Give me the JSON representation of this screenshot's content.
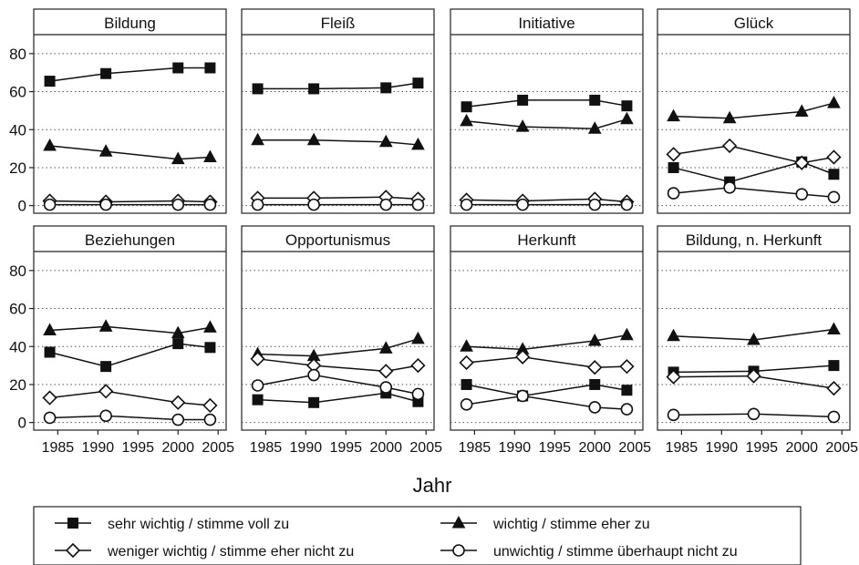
{
  "x_axis_label": "Jahr",
  "chart_data": {
    "type": "line",
    "layout": "small-multiples 2x4",
    "xlabel": "Jahr",
    "ylabel": "",
    "xlim": [
      1982,
      2006
    ],
    "ylim": [
      -4,
      90
    ],
    "x_ticks": [
      1985,
      1990,
      1995,
      2000,
      2005
    ],
    "y_ticks": [
      0,
      20,
      40,
      60,
      80
    ],
    "grid": "horizontal dotted",
    "legend_placement": "bottom",
    "series_styles": [
      {
        "name": "sehr wichtig / stimme voll zu",
        "marker": "filled-square"
      },
      {
        "name": "wichtig / stimme eher zu",
        "marker": "filled-triangle"
      },
      {
        "name": "weniger wichtig / stimme eher nicht zu",
        "marker": "hollow-diamond"
      },
      {
        "name": "unwichtig / stimme überhaupt nicht zu",
        "marker": "hollow-circle"
      }
    ],
    "panels": [
      {
        "title": "Bildung",
        "series": [
          {
            "name": "sehr wichtig / stimme voll zu",
            "x": [
              1984,
              1991,
              2000,
              2004
            ],
            "values": [
              65.5,
              69.5,
              72.5,
              72.5
            ]
          },
          {
            "name": "wichtig / stimme eher zu",
            "x": [
              1984,
              1991,
              2000,
              2004
            ],
            "values": [
              31.5,
              28.5,
              24.5,
              25.5
            ]
          },
          {
            "name": "weniger wichtig / stimme eher nicht zu",
            "x": [
              1984,
              1991,
              2000,
              2004
            ],
            "values": [
              2.5,
              2,
              2.5,
              2
            ]
          },
          {
            "name": "unwichtig / stimme überhaupt nicht zu",
            "x": [
              1984,
              1991,
              2000,
              2004
            ],
            "values": [
              0.5,
              0.5,
              0.5,
              0.5
            ]
          }
        ]
      },
      {
        "title": "Fleiß",
        "series": [
          {
            "name": "sehr wichtig / stimme voll zu",
            "x": [
              1984,
              1991,
              2000,
              2004
            ],
            "values": [
              61.5,
              61.5,
              62,
              64.5
            ]
          },
          {
            "name": "wichtig / stimme eher zu",
            "x": [
              1984,
              1991,
              2000,
              2004
            ],
            "values": [
              34.5,
              34.5,
              33.5,
              32
            ]
          },
          {
            "name": "weniger wichtig / stimme eher nicht zu",
            "x": [
              1984,
              1991,
              2000,
              2004
            ],
            "values": [
              4,
              4,
              4.5,
              3.5
            ]
          },
          {
            "name": "unwichtig / stimme überhaupt nicht zu",
            "x": [
              1984,
              1991,
              2000,
              2004
            ],
            "values": [
              0.5,
              0.5,
              0.5,
              0.5
            ]
          }
        ]
      },
      {
        "title": "Initiative",
        "series": [
          {
            "name": "sehr wichtig / stimme voll zu",
            "x": [
              1984,
              1991,
              2000,
              2004
            ],
            "values": [
              52,
              55.5,
              55.5,
              52.5
            ]
          },
          {
            "name": "wichtig / stimme eher zu",
            "x": [
              1984,
              1991,
              2000,
              2004
            ],
            "values": [
              44.5,
              41.5,
              40.5,
              45.5
            ]
          },
          {
            "name": "weniger wichtig / stimme eher nicht zu",
            "x": [
              1984,
              1991,
              2000,
              2004
            ],
            "values": [
              3,
              2.5,
              3.5,
              2
            ]
          },
          {
            "name": "unwichtig / stimme überhaupt nicht zu",
            "x": [
              1984,
              1991,
              2000,
              2004
            ],
            "values": [
              0.5,
              0.5,
              0.5,
              0.5
            ]
          }
        ]
      },
      {
        "title": "Glück",
        "series": [
          {
            "name": "sehr wichtig / stimme voll zu",
            "x": [
              1984,
              1991,
              2000,
              2004
            ],
            "values": [
              20,
              12.5,
              23,
              16.5
            ]
          },
          {
            "name": "wichtig / stimme eher zu",
            "x": [
              1984,
              1991,
              2000,
              2004
            ],
            "values": [
              47,
              46,
              49.5,
              54
            ]
          },
          {
            "name": "weniger wichtig / stimme eher nicht zu",
            "x": [
              1984,
              1991,
              2000,
              2004
            ],
            "values": [
              27,
              31.5,
              22.5,
              25.5
            ]
          },
          {
            "name": "unwichtig / stimme überhaupt nicht zu",
            "x": [
              1984,
              1991,
              2000,
              2004
            ],
            "values": [
              6.5,
              9.5,
              6,
              4.5
            ]
          }
        ]
      },
      {
        "title": "Beziehungen",
        "series": [
          {
            "name": "sehr wichtig / stimme voll zu",
            "x": [
              1984,
              1991,
              2000,
              2004
            ],
            "values": [
              37,
              29.5,
              41.5,
              39.5
            ]
          },
          {
            "name": "wichtig / stimme eher zu",
            "x": [
              1984,
              1991,
              2000,
              2004
            ],
            "values": [
              48.5,
              50.5,
              47,
              50
            ]
          },
          {
            "name": "weniger wichtig / stimme eher nicht zu",
            "x": [
              1984,
              1991,
              2000,
              2004
            ],
            "values": [
              13,
              16.5,
              10.5,
              9
            ]
          },
          {
            "name": "unwichtig / stimme überhaupt nicht zu",
            "x": [
              1984,
              1991,
              2000,
              2004
            ],
            "values": [
              2.5,
              3.5,
              1.5,
              1.5
            ]
          }
        ]
      },
      {
        "title": "Opportunismus",
        "series": [
          {
            "name": "sehr wichtig / stimme voll zu",
            "x": [
              1984,
              1991,
              2000,
              2004
            ],
            "values": [
              12,
              10.5,
              15.5,
              11
            ]
          },
          {
            "name": "wichtig / stimme eher zu",
            "x": [
              1984,
              1991,
              2000,
              2004
            ],
            "values": [
              36,
              35,
              39,
              44
            ]
          },
          {
            "name": "weniger wichtig / stimme eher nicht zu",
            "x": [
              1984,
              1991,
              2000,
              2004
            ],
            "values": [
              33.5,
              30,
              27,
              30
            ]
          },
          {
            "name": "unwichtig / stimme überhaupt nicht zu",
            "x": [
              1984,
              1991,
              2000,
              2004
            ],
            "values": [
              19.5,
              25,
              18.5,
              15
            ]
          }
        ]
      },
      {
        "title": "Herkunft",
        "series": [
          {
            "name": "sehr wichtig / stimme voll zu",
            "x": [
              1984,
              1991,
              2000,
              2004
            ],
            "values": [
              20,
              14,
              20,
              17
            ]
          },
          {
            "name": "wichtig / stimme eher zu",
            "x": [
              1984,
              1991,
              2000,
              2004
            ],
            "values": [
              40,
              38.5,
              43,
              46
            ]
          },
          {
            "name": "weniger wichtig / stimme eher nicht zu",
            "x": [
              1984,
              1991,
              2000,
              2004
            ],
            "values": [
              31.5,
              34.5,
              29,
              29.5
            ]
          },
          {
            "name": "unwichtig / stimme überhaupt nicht zu",
            "x": [
              1984,
              1991,
              2000,
              2004
            ],
            "values": [
              9.5,
              14,
              8,
              7
            ]
          }
        ]
      },
      {
        "title": "Bildung, n. Herkunft",
        "series": [
          {
            "name": "sehr wichtig / stimme voll zu",
            "x": [
              1984,
              1994,
              2004
            ],
            "values": [
              26.5,
              27,
              30
            ]
          },
          {
            "name": "wichtig / stimme eher zu",
            "x": [
              1984,
              1994,
              2004
            ],
            "values": [
              45.5,
              43.5,
              49
            ]
          },
          {
            "name": "weniger wichtig / stimme eher nicht zu",
            "x": [
              1984,
              1994,
              2004
            ],
            "values": [
              24,
              24.5,
              18
            ]
          },
          {
            "name": "unwichtig / stimme überhaupt nicht zu",
            "x": [
              1984,
              1994,
              2004
            ],
            "values": [
              4,
              4.5,
              3
            ]
          }
        ]
      }
    ]
  }
}
